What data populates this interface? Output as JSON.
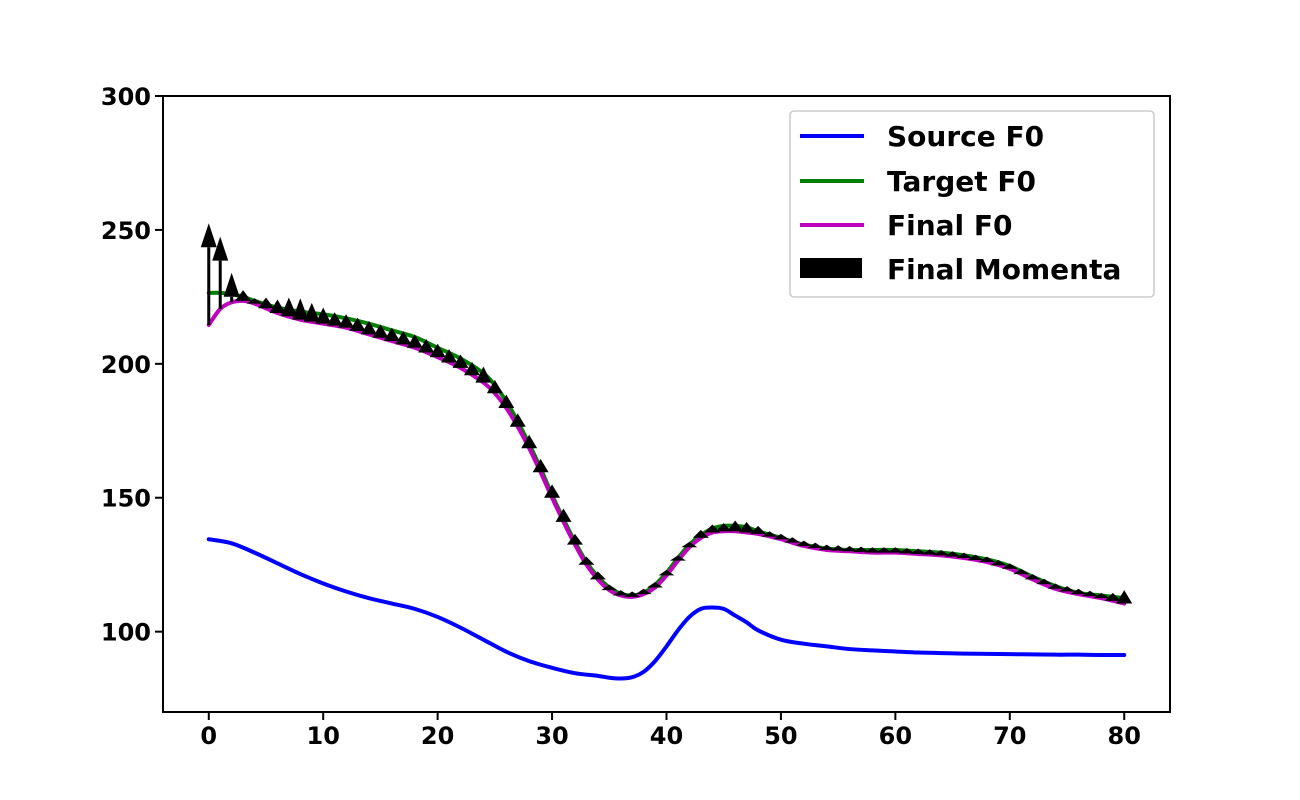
{
  "chart_data": {
    "type": "line",
    "xlim": [
      -4,
      84
    ],
    "ylim": [
      70,
      300
    ],
    "xticks": [
      0,
      10,
      20,
      30,
      40,
      50,
      60,
      70,
      80
    ],
    "yticks": [
      100,
      150,
      200,
      250,
      300
    ],
    "grid": false,
    "legend_position": "top-right",
    "series": [
      {
        "name": "Source F0",
        "color": "#0000ff",
        "x": [
          0,
          2,
          4,
          6,
          8,
          10,
          12,
          14,
          16,
          18,
          20,
          22,
          24,
          26,
          28,
          30,
          32,
          34,
          35,
          36,
          37,
          38,
          39,
          40,
          41,
          42,
          43,
          44,
          45,
          46,
          47,
          48,
          50,
          52,
          54,
          56,
          58,
          60,
          62,
          64,
          66,
          68,
          70,
          72,
          74,
          76,
          78,
          80
        ],
        "y": [
          134.5,
          133,
          129.5,
          125.5,
          121.5,
          118,
          115,
          112.5,
          110.5,
          108.5,
          105.5,
          101.5,
          97,
          92.5,
          89,
          86.5,
          84.5,
          83.5,
          82.8,
          82.5,
          83,
          85,
          89,
          94.5,
          100.5,
          105.5,
          108.5,
          109,
          108.5,
          106,
          103.5,
          100.5,
          97,
          95.5,
          94.5,
          93.5,
          93,
          92.6,
          92.2,
          92,
          91.8,
          91.7,
          91.6,
          91.5,
          91.4,
          91.4,
          91.3,
          91.3
        ]
      },
      {
        "name": "Target F0",
        "color": "#008000",
        "x": [
          0,
          1,
          2,
          3,
          4,
          6,
          8,
          10,
          12,
          14,
          16,
          18,
          20,
          22,
          24,
          25,
          26,
          27,
          28,
          29,
          30,
          31,
          32,
          33,
          34,
          35,
          36,
          37,
          38,
          39,
          40,
          41,
          42,
          43,
          44,
          45,
          46,
          47,
          48,
          50,
          52,
          54,
          56,
          58,
          60,
          62,
          64,
          66,
          68,
          70,
          72,
          74,
          76,
          78,
          80
        ],
        "y": [
          226.5,
          226.5,
          226,
          225,
          223.5,
          221,
          219.5,
          218.5,
          217,
          215,
          212.5,
          210,
          206,
          202,
          196.5,
          192,
          186,
          178.5,
          170,
          161,
          151,
          142,
          133.5,
          126,
          120.5,
          116.5,
          114.2,
          113.5,
          114.5,
          117.5,
          122,
          127.5,
          132.5,
          136,
          138.5,
          139.5,
          139.5,
          139,
          137.5,
          135,
          132.5,
          131,
          130.5,
          130.5,
          130.5,
          130,
          129.5,
          128.5,
          127,
          124.5,
          120.5,
          117,
          114.5,
          113.5,
          112.5
        ]
      },
      {
        "name": "Final F0",
        "color": "#bf00bf",
        "x": [
          0,
          1,
          2,
          3,
          4,
          6,
          8,
          10,
          12,
          14,
          16,
          18,
          20,
          22,
          24,
          25,
          26,
          27,
          28,
          29,
          30,
          31,
          32,
          33,
          34,
          35,
          36,
          37,
          38,
          39,
          40,
          41,
          42,
          43,
          44,
          45,
          46,
          47,
          48,
          50,
          52,
          54,
          56,
          58,
          60,
          62,
          64,
          66,
          68,
          70,
          72,
          74,
          76,
          78,
          80
        ],
        "y": [
          214.5,
          220.5,
          223,
          223.5,
          222.5,
          219,
          216.5,
          215,
          213.5,
          211,
          208.5,
          206,
          202.5,
          198.5,
          193,
          189,
          183.5,
          176.5,
          168.5,
          159.5,
          150,
          141,
          132.5,
          125,
          119.5,
          115.5,
          113.5,
          113,
          114,
          116.5,
          121,
          126.5,
          131.5,
          135,
          137,
          137.5,
          137.5,
          137,
          136.5,
          134.5,
          132,
          130.5,
          130,
          129.5,
          129.5,
          129,
          128.5,
          127.5,
          126,
          123.5,
          119.5,
          116,
          114,
          112.5,
          110.5
        ]
      }
    ],
    "momenta": {
      "name": "Final Momenta",
      "color": "#000000",
      "x": [
        0,
        1,
        2,
        3,
        4,
        5,
        6,
        7,
        8,
        9,
        10,
        11,
        12,
        13,
        14,
        15,
        16,
        17,
        18,
        19,
        20,
        21,
        22,
        23,
        24,
        25,
        26,
        27,
        28,
        29,
        30,
        31,
        32,
        33,
        34,
        35,
        36,
        37,
        38,
        39,
        40,
        41,
        42,
        43,
        44,
        45,
        46,
        47,
        48,
        49,
        50,
        51,
        52,
        53,
        54,
        55,
        56,
        57,
        58,
        59,
        60,
        61,
        62,
        63,
        64,
        65,
        66,
        67,
        68,
        69,
        70,
        71,
        72,
        73,
        74,
        75,
        76,
        77,
        78,
        79,
        80
      ],
      "magnitude": [
        38,
        27,
        11,
        4,
        2,
        4,
        5,
        7,
        8,
        7,
        6,
        5,
        5,
        5,
        5,
        5,
        5,
        5,
        5,
        5,
        5,
        5,
        5,
        5,
        6,
        5,
        5,
        5,
        5,
        5,
        5,
        5,
        4,
        3,
        3,
        2,
        2,
        2,
        2,
        2,
        2,
        2,
        2,
        3,
        3,
        3,
        4,
        4,
        3,
        2,
        2,
        2,
        2,
        2,
        2,
        2,
        2,
        2,
        2,
        2,
        2,
        2,
        2,
        2,
        2,
        2,
        2,
        2,
        2,
        2,
        2,
        2,
        2,
        2,
        2,
        2,
        2,
        2,
        2,
        3,
        5
      ]
    }
  }
}
